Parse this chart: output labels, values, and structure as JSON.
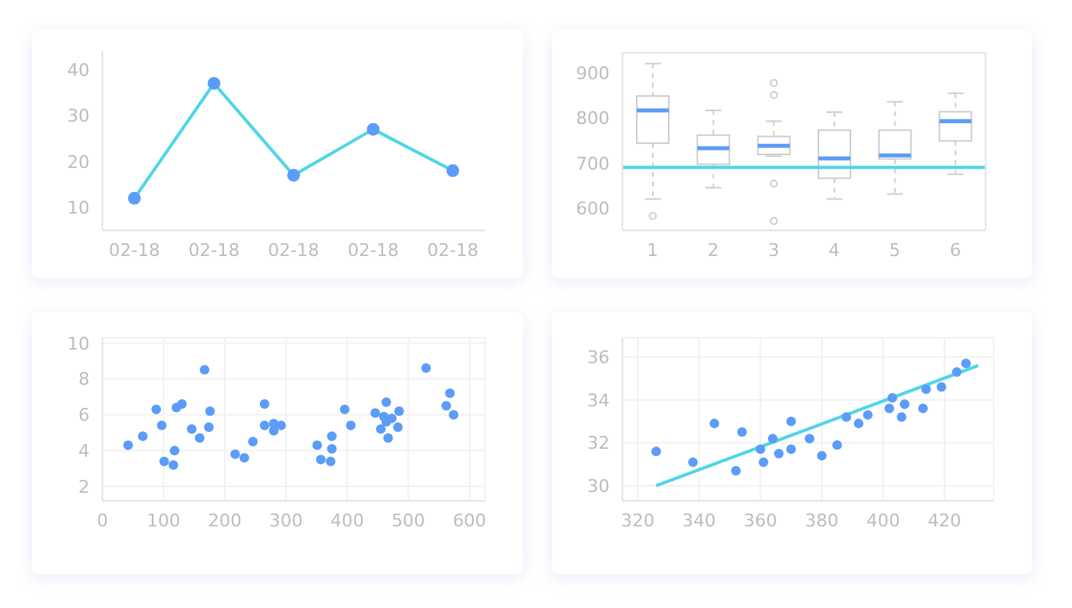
{
  "chart_data": [
    {
      "type": "line",
      "categories": [
        "02-18",
        "02-18",
        "02-18",
        "02-18",
        "02-18"
      ],
      "ylim": [
        5,
        44
      ],
      "yticks": [
        10,
        20,
        30,
        40
      ],
      "marker": "circle",
      "series": [
        {
          "type": "line",
          "color": "#4fd6e6",
          "values": [
            12,
            37,
            17,
            27,
            18
          ],
          "marker": "none"
        },
        {
          "type": "scatter",
          "color": "#5b9cf8",
          "values": [
            12,
            37,
            17,
            27,
            18
          ]
        }
      ]
    },
    {
      "type": "box",
      "categories": [
        "1",
        "2",
        "3",
        "4",
        "5",
        "6"
      ],
      "ylim": [
        550,
        945
      ],
      "yticks": [
        600,
        700,
        800,
        900
      ],
      "color": "#cfcfcf",
      "boxes": [
        {
          "low": 620,
          "q1": 744,
          "median": 817,
          "q3": 849,
          "high": 921,
          "outliers": [
            582
          ]
        },
        {
          "low": 645,
          "q1": 697,
          "median": 733,
          "q3": 762,
          "high": 817
        },
        {
          "low": 715,
          "q1": 719,
          "median": 738,
          "q3": 759,
          "high": 793,
          "outliers": [
            878,
            851,
            654,
            571
          ]
        },
        {
          "low": 620,
          "q1": 666,
          "median": 710,
          "q3": 773,
          "high": 813
        },
        {
          "low": 631,
          "q1": 709,
          "median": 717,
          "q3": 773,
          "high": 836
        },
        {
          "low": 675,
          "q1": 749,
          "median": 793,
          "q3": 814,
          "high": 855
        }
      ],
      "ref_lines": [
        {
          "axis": "y",
          "value": 690,
          "color": "#4fd6e6"
        }
      ]
    },
    {
      "type": "scatter",
      "color": "#5b9cf8",
      "xlim": [
        0,
        625
      ],
      "xticks": [
        0,
        100,
        200,
        300,
        400,
        500,
        600
      ],
      "ylim": [
        1.2,
        10.3
      ],
      "yticks": [
        2,
        4,
        6,
        8,
        10
      ],
      "grid": true,
      "marker": "circle",
      "x": [
        42,
        66,
        88,
        97,
        101,
        116,
        118,
        121,
        130,
        146,
        159,
        167,
        174,
        176,
        217,
        232,
        246,
        265,
        265,
        280,
        280,
        292,
        351,
        357,
        373,
        375,
        375,
        396,
        406,
        446,
        455,
        460,
        464,
        464,
        467,
        473,
        483,
        485,
        529,
        562,
        568,
        574
      ],
      "values": [
        4.3,
        4.8,
        6.3,
        5.4,
        3.4,
        3.2,
        4.0,
        6.4,
        6.6,
        5.2,
        4.7,
        8.5,
        5.3,
        6.2,
        3.8,
        3.6,
        4.5,
        6.6,
        5.4,
        5.5,
        5.1,
        5.4,
        4.3,
        3.5,
        3.4,
        4.1,
        4.8,
        6.3,
        5.4,
        6.1,
        5.2,
        5.9,
        6.7,
        5.6,
        4.7,
        5.8,
        5.3,
        6.2,
        8.6,
        6.5,
        7.2,
        6.0
      ]
    },
    {
      "type": "scatter",
      "xlim": [
        315,
        436
      ],
      "xticks": [
        320,
        340,
        360,
        380,
        400,
        420
      ],
      "ylim": [
        29.3,
        36.9
      ],
      "yticks": [
        30,
        32,
        34,
        36
      ],
      "grid": true,
      "marker": "circle",
      "series": [
        {
          "type": "scatter",
          "color": "#5b9cf8",
          "x": [
            326,
            338,
            345,
            352,
            354,
            360,
            361,
            364,
            366,
            370,
            370,
            376,
            380,
            385,
            388,
            392,
            395,
            402,
            403,
            406,
            407,
            413,
            414,
            419,
            424,
            427
          ],
          "values": [
            31.6,
            31.1,
            32.9,
            30.7,
            32.5,
            31.7,
            31.1,
            32.2,
            31.5,
            33.0,
            31.7,
            32.2,
            31.4,
            31.9,
            33.2,
            32.9,
            33.3,
            33.6,
            34.1,
            33.2,
            33.8,
            33.6,
            34.5,
            34.6,
            35.3,
            35.7
          ]
        },
        {
          "type": "line",
          "color": "#4fd6e6",
          "x": [
            326,
            431
          ],
          "values": [
            30.0,
            35.6
          ],
          "marker": "none"
        }
      ]
    }
  ]
}
